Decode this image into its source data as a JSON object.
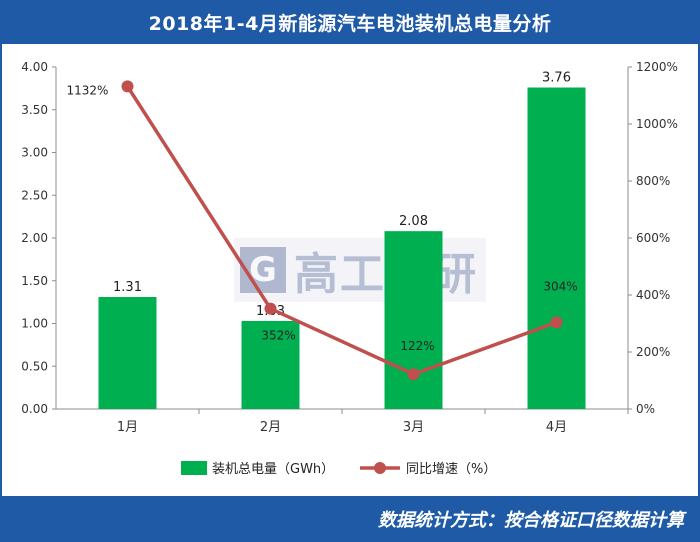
{
  "header": {
    "title": "2018年1-4月新能源汽车电池装机总电量分析"
  },
  "footer": {
    "text": "数据统计方式：按合格证口径数据计算"
  },
  "watermark": {
    "logo_letter": "G",
    "text": "高工产研"
  },
  "chart_data": {
    "type": "bar",
    "categories": [
      "1月",
      "2月",
      "3月",
      "4月"
    ],
    "series": [
      {
        "name": "装机总电量（GWh）",
        "type": "bar",
        "axis": "left",
        "values": [
          1.31,
          1.03,
          2.08,
          3.76
        ],
        "labels": [
          "1.31",
          "1.03",
          "2.08",
          "3.76"
        ],
        "color": "#00b050"
      },
      {
        "name": "同比增速（%）",
        "type": "line",
        "axis": "right",
        "values": [
          1132,
          352,
          122,
          304
        ],
        "labels": [
          "1132%",
          "352%",
          "122%",
          "304%"
        ],
        "color": "#c0504d"
      }
    ],
    "y_left": {
      "ylim": [
        0,
        4
      ],
      "ticks": [
        "0.00",
        "0.50",
        "1.00",
        "1.50",
        "2.00",
        "2.50",
        "3.00",
        "3.50",
        "4.00"
      ]
    },
    "y_right": {
      "ylim": [
        0,
        1200
      ],
      "ticks": [
        "0%",
        "200%",
        "400%",
        "600%",
        "800%",
        "1000%",
        "1200%"
      ]
    },
    "grid": false,
    "legend": "bottom"
  }
}
